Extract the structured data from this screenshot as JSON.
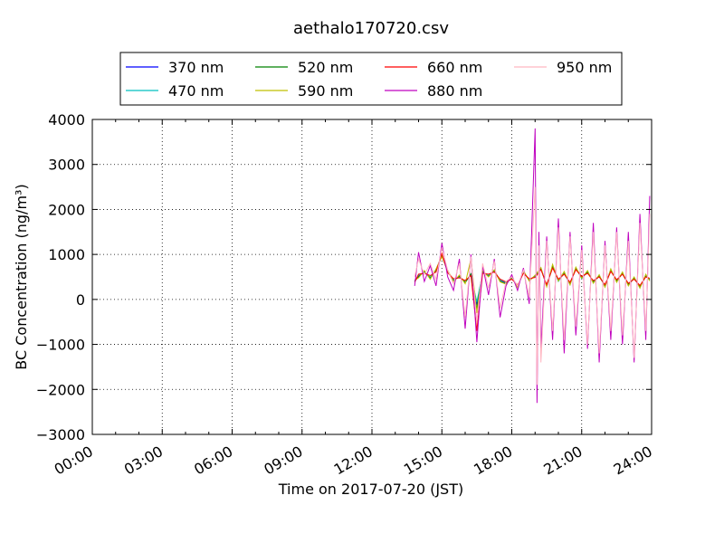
{
  "chart_data": {
    "type": "line",
    "title": "aethalo170720.csv",
    "xlabel": "Time on 2017-07-20 (JST)",
    "ylabel": "BC Concentration (ng/m³)",
    "xlim": [
      "00:00",
      "24:00"
    ],
    "ylim": [
      -3000,
      4000
    ],
    "x_ticks": [
      "00:00",
      "03:00",
      "06:00",
      "09:00",
      "12:00",
      "15:00",
      "18:00",
      "21:00",
      "24:00"
    ],
    "y_ticks": [
      "4000",
      "3000",
      "2000",
      "1000",
      "0",
      "−1000",
      "−2000",
      "−3000"
    ],
    "grid": true,
    "legend_position": "top",
    "series": [
      {
        "name": "370 nm",
        "color": "#0000ff",
        "x": [
          "13:50",
          "14:00",
          "14:15",
          "14:30",
          "14:45",
          "15:00",
          "15:15",
          "15:30",
          "15:45",
          "16:00",
          "16:15",
          "16:30",
          "16:45",
          "17:00",
          "17:15",
          "17:30",
          "17:45",
          "18:00",
          "18:15",
          "18:30",
          "18:45",
          "19:00",
          "19:15",
          "19:30",
          "19:45",
          "20:00",
          "20:15",
          "20:30",
          "20:45",
          "21:00",
          "21:15",
          "21:30",
          "21:45",
          "22:00",
          "22:15",
          "22:30",
          "22:45",
          "23:00",
          "23:15",
          "23:30",
          "23:45",
          "23:55"
        ],
        "values": [
          420,
          520,
          610,
          480,
          650,
          980,
          620,
          420,
          510,
          380,
          560,
          -120,
          610,
          520,
          640,
          410,
          360,
          480,
          290,
          610,
          430,
          520,
          680,
          310,
          740,
          420,
          580,
          350,
          690,
          480,
          610,
          390,
          520,
          300,
          650,
          410,
          580,
          330,
          470,
          280,
          520,
          440
        ]
      },
      {
        "name": "470 nm",
        "color": "#00bfbf",
        "x": [
          "13:50",
          "14:00",
          "14:15",
          "14:30",
          "14:45",
          "15:00",
          "15:15",
          "15:30",
          "15:45",
          "16:00",
          "16:15",
          "16:30",
          "16:45",
          "17:00",
          "17:15",
          "17:30",
          "17:45",
          "18:00",
          "18:15",
          "18:30",
          "18:45",
          "19:00",
          "19:15",
          "19:30",
          "19:45",
          "20:00",
          "20:15",
          "20:30",
          "20:45",
          "21:00",
          "21:15",
          "21:30",
          "21:45",
          "22:00",
          "22:15",
          "22:30",
          "22:45",
          "23:00",
          "23:15",
          "23:30",
          "23:45",
          "23:55"
        ],
        "values": [
          400,
          540,
          590,
          500,
          630,
          1000,
          600,
          440,
          490,
          400,
          540,
          -60,
          590,
          540,
          620,
          430,
          380,
          460,
          310,
          590,
          450,
          500,
          700,
          290,
          760,
          400,
          600,
          330,
          710,
          460,
          630,
          370,
          540,
          280,
          670,
          390,
          600,
          310,
          490,
          260,
          540,
          420
        ]
      },
      {
        "name": "520 nm",
        "color": "#008000",
        "x": [
          "13:50",
          "14:00",
          "14:15",
          "14:30",
          "14:45",
          "15:00",
          "15:15",
          "15:30",
          "15:45",
          "16:00",
          "16:15",
          "16:30",
          "16:45",
          "17:00",
          "17:15",
          "17:30",
          "17:45",
          "18:00",
          "18:15",
          "18:30",
          "18:45",
          "19:00",
          "19:15",
          "19:30",
          "19:45",
          "20:00",
          "20:15",
          "20:30",
          "20:45",
          "21:00",
          "21:15",
          "21:30",
          "21:45",
          "22:00",
          "22:15",
          "22:30",
          "22:45",
          "23:00",
          "23:15",
          "23:30",
          "23:45",
          "23:55"
        ],
        "values": [
          410,
          500,
          620,
          470,
          660,
          970,
          630,
          410,
          520,
          370,
          570,
          -200,
          620,
          510,
          650,
          400,
          350,
          490,
          280,
          620,
          420,
          530,
          690,
          300,
          720,
          430,
          570,
          360,
          680,
          490,
          600,
          400,
          510,
          310,
          640,
          420,
          570,
          340,
          460,
          290,
          510,
          450
        ]
      },
      {
        "name": "590 nm",
        "color": "#bfbf00",
        "x": [
          "13:50",
          "14:00",
          "14:15",
          "14:30",
          "14:45",
          "15:00",
          "15:15",
          "15:30",
          "15:45",
          "16:00",
          "16:15",
          "16:30",
          "16:45",
          "17:00",
          "17:15",
          "17:30",
          "17:45",
          "18:00",
          "18:15",
          "18:30",
          "18:45",
          "19:00",
          "19:15",
          "19:30",
          "19:45",
          "20:00",
          "20:15",
          "20:30",
          "20:45",
          "21:00",
          "21:15",
          "21:30",
          "21:45",
          "22:00",
          "22:15",
          "22:30",
          "22:45",
          "23:00",
          "23:15",
          "23:30",
          "23:45",
          "23:55"
        ],
        "values": [
          430,
          480,
          640,
          450,
          680,
          950,
          650,
          390,
          540,
          350,
          900,
          -300,
          640,
          500,
          660,
          390,
          340,
          500,
          270,
          640,
          410,
          540,
          710,
          280,
          780,
          410,
          620,
          320,
          720,
          470,
          640,
          360,
          550,
          270,
          680,
          380,
          610,
          300,
          500,
          250,
          560,
          410
        ]
      },
      {
        "name": "660 nm",
        "color": "#ff0000",
        "x": [
          "13:50",
          "14:00",
          "14:15",
          "14:30",
          "14:45",
          "15:00",
          "15:15",
          "15:30",
          "15:45",
          "16:00",
          "16:15",
          "16:30",
          "16:45",
          "17:00",
          "17:15",
          "17:30",
          "17:45",
          "18:00",
          "18:15",
          "18:30",
          "18:45",
          "19:00",
          "19:15",
          "19:30",
          "19:45",
          "20:00",
          "20:15",
          "20:30",
          "20:45",
          "21:00",
          "21:15",
          "21:30",
          "21:45",
          "22:00",
          "22:15",
          "22:30",
          "22:45",
          "23:00",
          "23:15",
          "23:30",
          "23:45",
          "23:55"
        ],
        "values": [
          380,
          560,
          580,
          530,
          610,
          1020,
          590,
          460,
          480,
          420,
          530,
          -700,
          580,
          560,
          610,
          450,
          390,
          450,
          320,
          580,
          460,
          490,
          660,
          330,
          700,
          450,
          560,
          380,
          660,
          510,
          580,
          420,
          500,
          330,
          620,
          440,
          560,
          360,
          450,
          310,
          500,
          470
        ]
      },
      {
        "name": "880 nm",
        "color": "#bf00bf",
        "x": [
          "13:50",
          "14:00",
          "14:15",
          "14:30",
          "14:45",
          "15:00",
          "15:15",
          "15:30",
          "15:45",
          "16:00",
          "16:15",
          "16:30",
          "16:45",
          "17:00",
          "17:15",
          "17:30",
          "17:45",
          "18:00",
          "18:15",
          "18:30",
          "18:45",
          "19:00",
          "19:05",
          "19:10",
          "19:15",
          "19:30",
          "19:45",
          "20:00",
          "20:15",
          "20:30",
          "20:45",
          "21:00",
          "21:15",
          "21:30",
          "21:45",
          "22:00",
          "22:15",
          "22:30",
          "22:45",
          "23:00",
          "23:15",
          "23:30",
          "23:45",
          "23:55"
        ],
        "values": [
          300,
          1050,
          400,
          750,
          300,
          1250,
          500,
          200,
          900,
          -650,
          1000,
          -950,
          750,
          100,
          900,
          -400,
          300,
          550,
          200,
          700,
          -100,
          3800,
          -2300,
          1500,
          -1100,
          1400,
          -900,
          1800,
          -1200,
          1500,
          -800,
          1200,
          -1100,
          1700,
          -1400,
          1300,
          -900,
          1600,
          -1000,
          1500,
          -1400,
          1900,
          -900,
          2300
        ]
      },
      {
        "name": "950 nm",
        "color": "#ffb6c1",
        "x": [
          "13:50",
          "14:00",
          "14:15",
          "14:30",
          "14:45",
          "15:00",
          "15:15",
          "15:30",
          "15:45",
          "16:00",
          "16:15",
          "16:30",
          "16:45",
          "17:00",
          "17:15",
          "17:30",
          "17:45",
          "18:00",
          "18:15",
          "18:30",
          "18:45",
          "19:00",
          "19:05",
          "19:10",
          "19:15",
          "19:30",
          "19:45",
          "20:00",
          "20:15",
          "20:30",
          "20:45",
          "21:00",
          "21:15",
          "21:30",
          "21:45",
          "22:00",
          "22:15",
          "22:30",
          "22:45",
          "23:00",
          "23:15",
          "23:30",
          "23:45",
          "23:55"
        ],
        "values": [
          500,
          900,
          550,
          800,
          450,
          1150,
          650,
          350,
          800,
          -400,
          950,
          -500,
          800,
          250,
          850,
          -200,
          400,
          500,
          300,
          650,
          50,
          2500,
          -1900,
          1200,
          -1400,
          1300,
          -700,
          1600,
          -900,
          1400,
          -600,
          1100,
          -1000,
          1500,
          -1200,
          1200,
          -700,
          1500,
          -800,
          1300,
          -1300,
          1700,
          -700,
          1900
        ]
      }
    ]
  }
}
